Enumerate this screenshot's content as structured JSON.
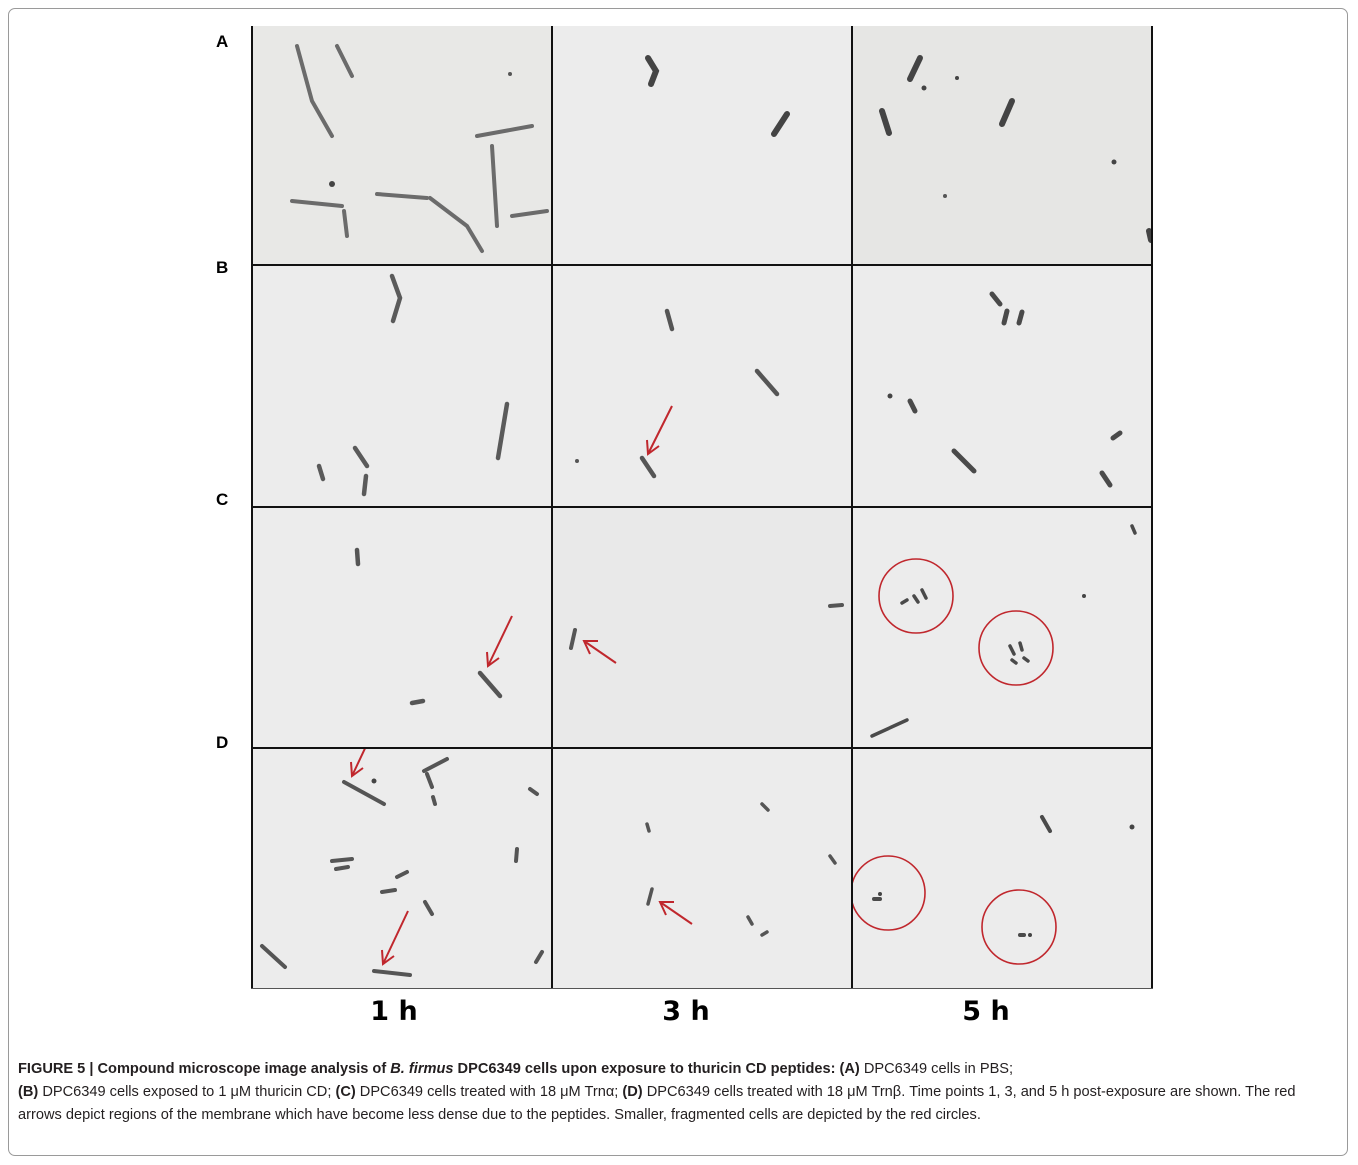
{
  "figure": {
    "row_labels": [
      "A",
      "B",
      "C",
      "D"
    ],
    "time_labels": [
      "1 h",
      "3 h",
      "5 h"
    ],
    "caption": {
      "title_prefix": "FIGURE 5 | Compound microscope image analysis of ",
      "title_species": "B. firmus",
      "title_suffix": " DPC6349 cells upon exposure to thuricin CD peptides:",
      "label_a": "(A)",
      "text_a": " DPC6349 cells in PBS;",
      "label_b": "(B)",
      "text_b": " DPC6349 cells exposed to 1 μM thuricin CD;",
      "label_c": "(C)",
      "text_c": " DPC6349 cells treated with 18 μM Trnα;",
      "label_d": "(D)",
      "text_d": " DPC6349 cells treated with 18 μM Trnβ. Time points 1, 3, and 5 h post-exposure are shown. The red arrows depict regions of the membrane which have become less dense due to the peptides. Smaller, fragmented cells are depicted by the red circles."
    },
    "colors": {
      "background_panel": "#ececec",
      "cell": "#5a5a5a",
      "annotation_red": "#c0272d"
    }
  }
}
